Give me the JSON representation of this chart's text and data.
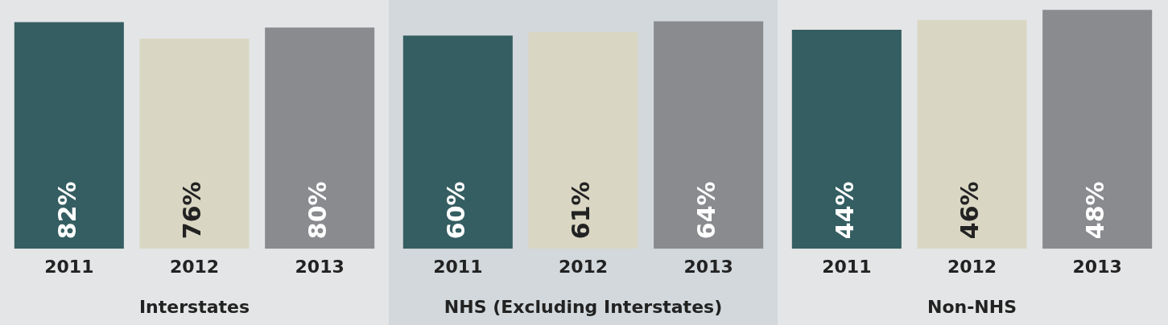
{
  "chart_data": [
    {
      "type": "bar",
      "xlabel": "Interstates",
      "categories": [
        "2011",
        "2012",
        "2013"
      ],
      "values": [
        82,
        76,
        80
      ],
      "value_labels": [
        "82%",
        "76%",
        "80%"
      ],
      "colors": [
        "#355e62",
        "#d9d6c3",
        "#8a8b8f"
      ],
      "grid": false,
      "legend": false,
      "tick_labels": "x"
    },
    {
      "type": "bar",
      "xlabel": "NHS (Excluding Interstates)",
      "categories": [
        "2011",
        "2012",
        "2013"
      ],
      "values": [
        60,
        61,
        64
      ],
      "value_labels": [
        "60%",
        "61%",
        "64%"
      ],
      "colors": [
        "#355e62",
        "#d9d6c3",
        "#8a8b8f"
      ],
      "grid": false,
      "legend": false,
      "tick_labels": "x"
    },
    {
      "type": "bar",
      "xlabel": "Non-NHS",
      "categories": [
        "2011",
        "2012",
        "2013"
      ],
      "values": [
        44,
        46,
        48
      ],
      "value_labels": [
        "44%",
        "46%",
        "48%"
      ],
      "colors": [
        "#355e62",
        "#d9d6c3",
        "#8a8b8f"
      ],
      "grid": false,
      "legend": false,
      "tick_labels": "x"
    }
  ]
}
